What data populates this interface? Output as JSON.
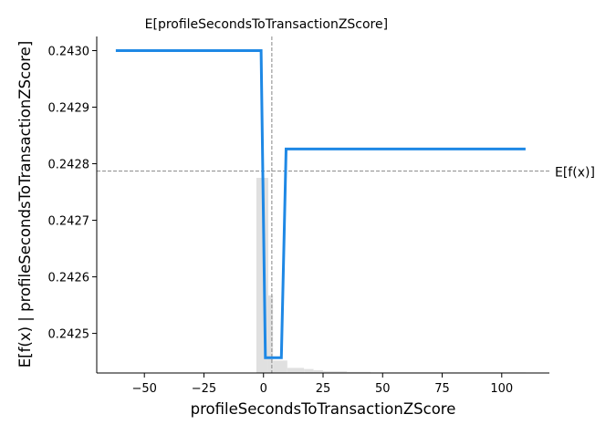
{
  "chart_data": {
    "type": "line",
    "title": "",
    "xlabel": "profileSecondsToTransactionZScore",
    "ylabel": "E[f(x) | profileSecondsToTransactionZScore]",
    "xlim": [
      -70,
      120
    ],
    "ylim": [
      0.24243,
      0.243025
    ],
    "xticks": [
      -50,
      -25,
      0,
      25,
      50,
      75,
      100
    ],
    "xtick_labels": [
      "−50",
      "−25",
      "0",
      "25",
      "50",
      "75",
      "100"
    ],
    "yticks": [
      0.2425,
      0.2426,
      0.2427,
      0.2428,
      0.2429,
      0.243
    ],
    "ytick_labels": [
      "0.2425",
      "0.2426",
      "0.2427",
      "0.2428",
      "0.2429",
      "0.2430"
    ],
    "grid": false,
    "series": [
      {
        "color": "#1e88e5",
        "x": [
          -62,
          -1,
          0.8,
          7.5,
          9.5,
          110
        ],
        "y": [
          0.243,
          0.243,
          0.242457,
          0.242457,
          0.242826,
          0.242826
        ]
      }
    ],
    "expected_x": {
      "label": "E[profileSecondsToTransactionZScore]",
      "value": 3.5
    },
    "expected_y": {
      "label": "E[f(x)]",
      "value": 0.242787
    },
    "histogram": {
      "color": "#e0e0e0",
      "bins": [
        {
          "x0": -3,
          "x1": 2,
          "value": 0.242775
        },
        {
          "x0": 2,
          "x1": 4,
          "value": 0.242567
        },
        {
          "x0": 4,
          "x1": 10,
          "value": 0.242452
        },
        {
          "x0": 10,
          "x1": 17,
          "value": 0.242439
        },
        {
          "x0": 17,
          "x1": 21,
          "value": 0.242437
        },
        {
          "x0": 21,
          "x1": 25,
          "value": 0.242435
        },
        {
          "x0": 25,
          "x1": 35,
          "value": 0.242433
        },
        {
          "x0": 35,
          "x1": 45,
          "value": 0.242432
        },
        {
          "x0": 45,
          "x1": 110,
          "value": 0.242431
        }
      ]
    }
  }
}
